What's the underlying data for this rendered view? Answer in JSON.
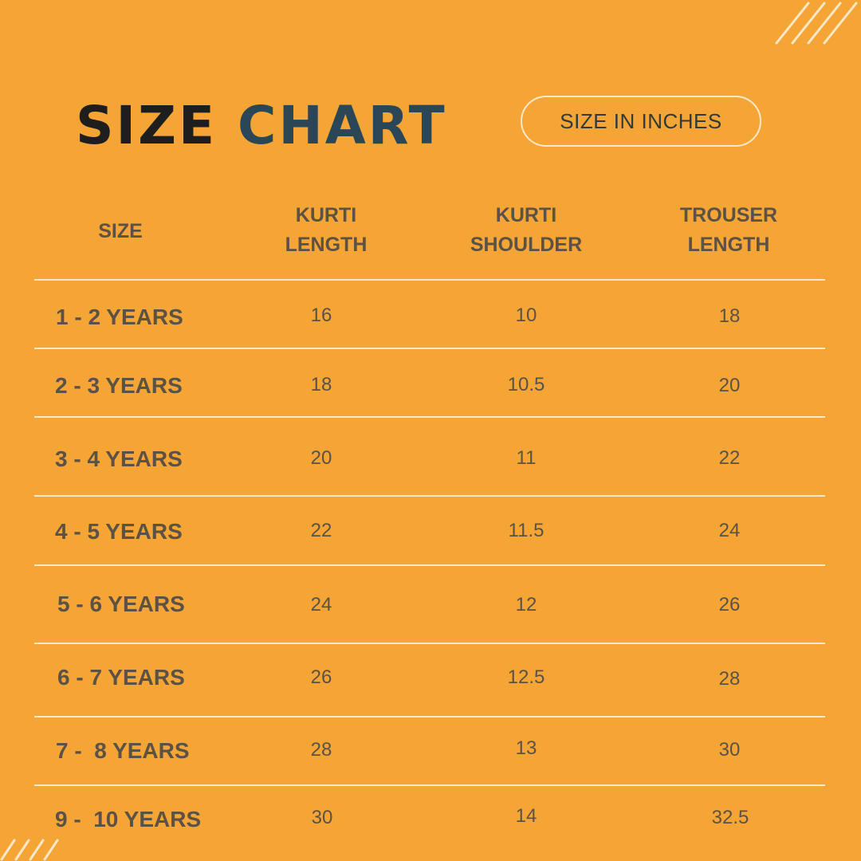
{
  "title": {
    "word1": "SIZE",
    "word2": "CHART"
  },
  "unit_badge": "SIZE IN INCHES",
  "columns": [
    {
      "line1": "SIZE",
      "line2": ""
    },
    {
      "line1": "KURTI",
      "line2": "LENGTH"
    },
    {
      "line1": "KURTI",
      "line2": "SHOULDER"
    },
    {
      "line1": "TROUSER",
      "line2": "LENGTH"
    }
  ],
  "rows": [
    {
      "size": "1 - 2 YEARS",
      "kurti_length": "16",
      "kurti_shoulder": "10",
      "trouser_length": "18"
    },
    {
      "size": "2 - 3 YEARS",
      "kurti_length": "18",
      "kurti_shoulder": "10.5",
      "trouser_length": "20"
    },
    {
      "size": "3 - 4 YEARS",
      "kurti_length": "20",
      "kurti_shoulder": "11",
      "trouser_length": "22"
    },
    {
      "size": "4 - 5 YEARS",
      "kurti_length": "22",
      "kurti_shoulder": "11.5",
      "trouser_length": "24"
    },
    {
      "size": "5 - 6 YEARS",
      "kurti_length": "24",
      "kurti_shoulder": "12",
      "trouser_length": "26"
    },
    {
      "size": "6 - 7 YEARS",
      "kurti_length": "26",
      "kurti_shoulder": "12.5",
      "trouser_length": "28"
    },
    {
      "size": "7 -  8 YEARS",
      "kurti_length": "28",
      "kurti_shoulder": "13",
      "trouser_length": "30"
    },
    {
      "size": "9 -  10 YEARS",
      "kurti_length": "30",
      "kurti_shoulder": "14",
      "trouser_length": "32.5"
    }
  ],
  "colors": {
    "background": "#F4A535",
    "title_dark": "#1E1E1E",
    "title_accent": "#2B4657",
    "text": "#5B5145",
    "lines": "#FBE8C8"
  }
}
